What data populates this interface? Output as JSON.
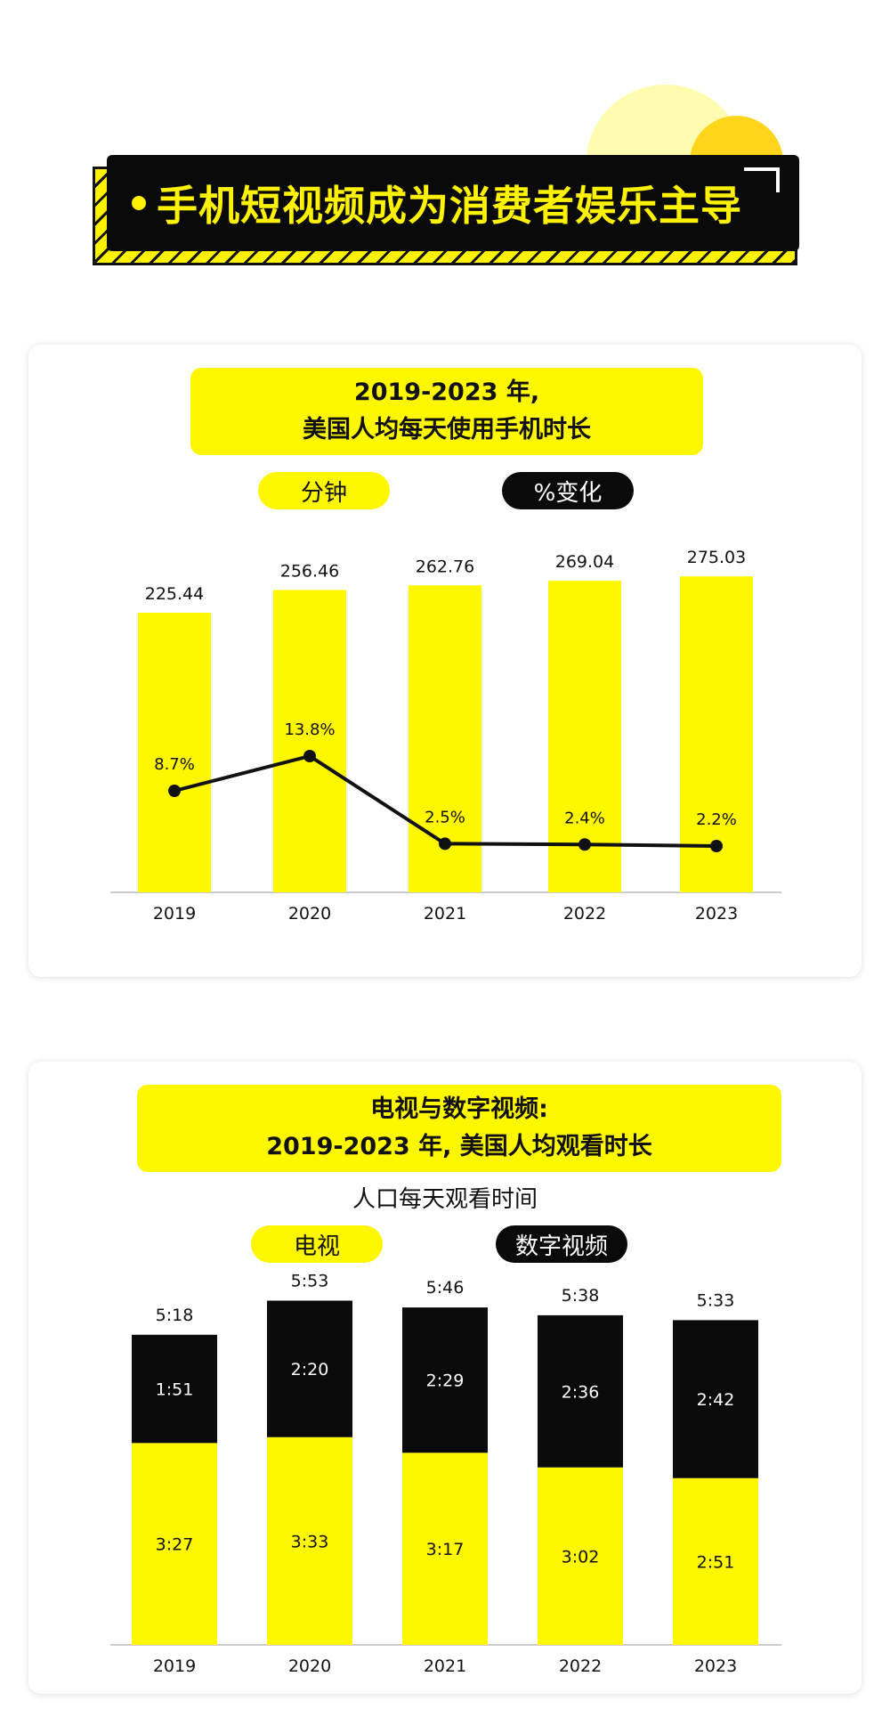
{
  "banner": {
    "title": "手机短视频成为消费者娱乐主导"
  },
  "colors": {
    "accent_yellow": "#fff700",
    "black": "#0a0a0a",
    "line": "#111111"
  },
  "card1": {
    "title_line1": "2019-2023 年,",
    "title_line2": "美国人均每天使用手机时长",
    "legend_minutes": "分钟",
    "legend_change": "%变化"
  },
  "card2": {
    "title_line1": "电视与数字视频:",
    "title_line2": "2019-2023 年, 美国人均观看时长",
    "subtitle": "人口每天观看时间",
    "legend_tv": "电视",
    "legend_digital": "数字视频"
  },
  "chart_data": [
    {
      "type": "bar",
      "title": "2019-2023 年, 美国人均每天使用手机时长",
      "categories": [
        "2019",
        "2020",
        "2021",
        "2022",
        "2023"
      ],
      "series": [
        {
          "name": "分钟",
          "type": "bar",
          "values": [
            225.44,
            256.46,
            262.76,
            269.04,
            275.03
          ],
          "labels": [
            "225.44",
            "256.46",
            "262.76",
            "269.04",
            "275.03"
          ]
        },
        {
          "name": "%变化",
          "type": "line",
          "values": [
            8.7,
            13.8,
            2.5,
            2.4,
            2.2
          ],
          "labels": [
            "8.7%",
            "13.8%",
            "2.5%",
            "2.4%",
            "2.2%"
          ]
        }
      ],
      "grid": false
    },
    {
      "type": "bar",
      "stacked": true,
      "title": "电视与数字视频: 2019-2023 年, 美国人均观看时长",
      "subtitle": "人口每天观看时间",
      "categories": [
        "2019",
        "2020",
        "2021",
        "2022",
        "2023"
      ],
      "totals": [
        "5:18",
        "5:53",
        "5:46",
        "5:38",
        "5:33"
      ],
      "series": [
        {
          "name": "电视",
          "values_minutes": [
            207,
            213,
            197,
            182,
            171
          ],
          "labels": [
            "3:27",
            "3:33",
            "3:17",
            "3:02",
            "2:51"
          ]
        },
        {
          "name": "数字视频",
          "values_minutes": [
            111,
            140,
            149,
            156,
            162
          ],
          "labels": [
            "1:51",
            "2:20",
            "2:29",
            "2:36",
            "2:42"
          ]
        }
      ],
      "grid": false
    }
  ]
}
